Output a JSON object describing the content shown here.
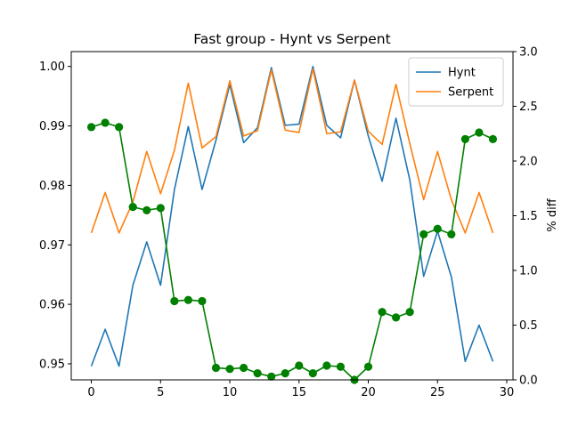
{
  "chart_data": {
    "type": "line",
    "title": "Fast group - Hynt vs Serpent",
    "xlabel": "",
    "ylabel": "",
    "y2label": "% diff",
    "x": [
      0,
      1,
      2,
      3,
      4,
      5,
      6,
      7,
      8,
      9,
      10,
      11,
      12,
      13,
      14,
      15,
      16,
      17,
      18,
      19,
      20,
      21,
      22,
      23,
      24,
      25,
      26,
      27,
      28,
      29
    ],
    "xlim": [
      -1.45,
      30.45
    ],
    "ylim": [
      0.9473,
      1.0025
    ],
    "y2lim": [
      0.0,
      3.0
    ],
    "xticks": [
      "0",
      "5",
      "10",
      "15",
      "20",
      "25",
      "30"
    ],
    "yticks": [
      "0.95",
      "0.96",
      "0.97",
      "0.98",
      "0.99",
      "1.00"
    ],
    "y2ticks": [
      "0.0",
      "0.5",
      "1.0",
      "1.5",
      "2.0",
      "2.5",
      "3.0"
    ],
    "legend_position": "top-right",
    "series": [
      {
        "name": "Hynt",
        "axis": "left",
        "color": "#1f77b4",
        "values": [
          0.9496,
          0.9558,
          0.9496,
          0.9632,
          0.9705,
          0.9632,
          0.9793,
          0.9899,
          0.9793,
          0.9876,
          0.997,
          0.9872,
          0.9897,
          0.9998,
          0.9901,
          0.9903,
          1.0,
          0.9901,
          0.988,
          0.9977,
          0.9883,
          0.9807,
          0.9913,
          0.9809,
          0.9647,
          0.9723,
          0.9646,
          0.9504,
          0.9565,
          0.9504
        ]
      },
      {
        "name": "Serpent",
        "axis": "left",
        "color": "#ff7f0e",
        "values": [
          0.972,
          0.9788,
          0.972,
          0.9772,
          0.9857,
          0.9786,
          0.9859,
          0.9972,
          0.9863,
          0.9882,
          0.9976,
          0.9883,
          0.9892,
          0.9994,
          0.9893,
          0.9889,
          0.9996,
          0.9887,
          0.989,
          0.9977,
          0.9891,
          0.9869,
          0.997,
          0.987,
          0.9776,
          0.9857,
          0.9776,
          0.972,
          0.9788,
          0.972
        ]
      },
      {
        "name": "",
        "axis": "right",
        "color": "#008000",
        "marker": "circle",
        "values": [
          2.31,
          2.35,
          2.31,
          1.58,
          1.55,
          1.57,
          0.72,
          0.73,
          0.72,
          0.11,
          0.1,
          0.11,
          0.06,
          0.03,
          0.06,
          0.13,
          0.06,
          0.13,
          0.12,
          0.0,
          0.12,
          0.62,
          0.57,
          0.62,
          1.33,
          1.38,
          1.33,
          2.2,
          2.26,
          2.2
        ]
      }
    ]
  }
}
